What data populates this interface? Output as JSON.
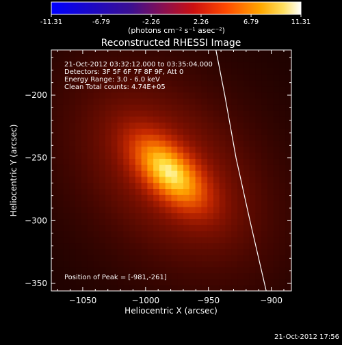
{
  "colorbar": {
    "ticks": [
      "-11.31",
      "-6.79",
      "-2.26",
      "2.26",
      "6.79",
      "11.31"
    ],
    "range": [
      -11.31,
      11.31
    ]
  },
  "chart_data": {
    "type": "heatmap",
    "title": "Reconstructed RHESSI Image",
    "xlabel": "Heliocentric X (arcsec)",
    "ylabel": "Heliocentric Y (arcsec)",
    "xlim": [
      -1075,
      -884
    ],
    "ylim": [
      -356,
      -164
    ],
    "x_ticks": [
      -1050,
      -1000,
      -950,
      -900
    ],
    "x_tick_labels": [
      "−1050",
      "−1000",
      "−950",
      "−900"
    ],
    "y_ticks": [
      -200,
      -250,
      -300,
      -350
    ],
    "y_tick_labels": [
      "−200",
      "−250",
      "−300",
      "−350"
    ],
    "colorbar_unit": "(photons cm⁻² s⁻¹ asec⁻²)",
    "info_lines": [
      "21-Oct-2012 03:32:12.000 to 03:35:04.000",
      "Detectors: 3F 5F 6F 7F 8F 9F, Att 0",
      "Energy Range: 3.0 - 6.0 keV",
      "Clean    Total counts: 4.74E+05"
    ],
    "peak_text": "Position of Peak = [-981,-261]",
    "peak": [
      -981,
      -261
    ],
    "peak_intensity": 11.31,
    "limb": [
      [
        -944,
        -164
      ],
      [
        -937,
        -200
      ],
      [
        -928,
        -250
      ],
      [
        -917,
        -300
      ],
      [
        -904,
        -356
      ]
    ]
  },
  "timestamp": "21-Oct-2012 17:56"
}
